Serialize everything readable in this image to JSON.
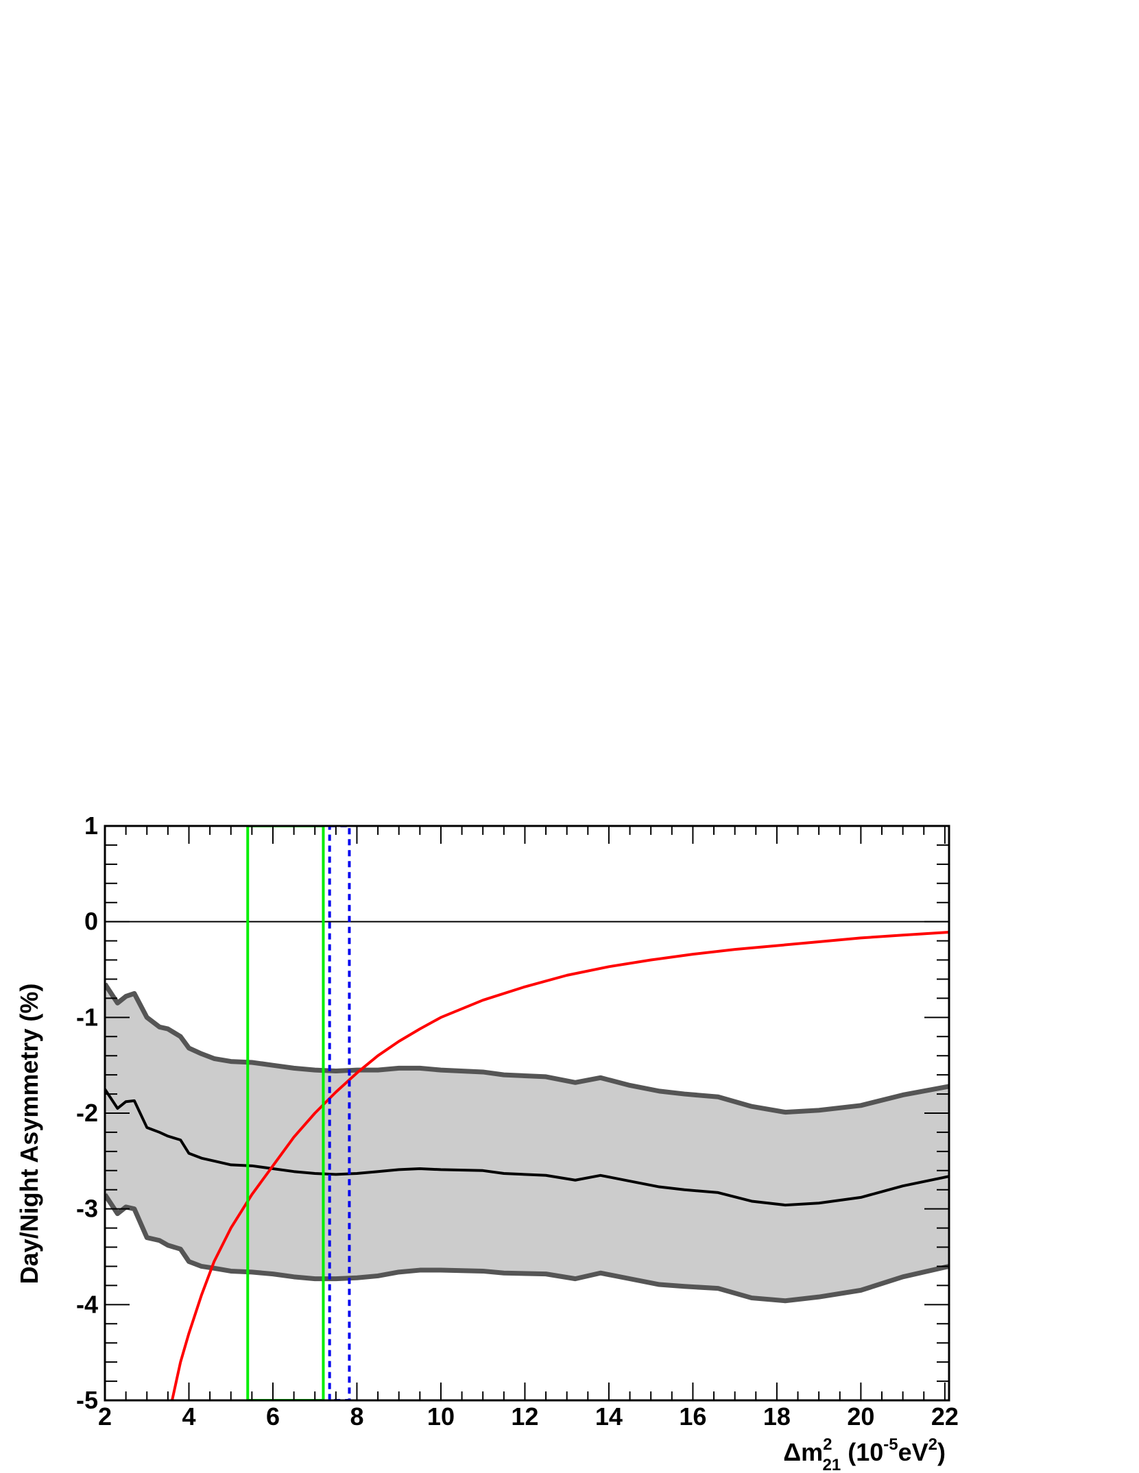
{
  "chart_data": {
    "type": "line",
    "xlabel": {
      "prefix": "Δm",
      "sup": "2",
      "sub": "21",
      "mid": " (10",
      "unit_sup": "-5",
      "unit": "eV",
      "unit_sup2": "2",
      "suffix": ")"
    },
    "ylabel": "Day/Night Asymmetry (%)",
    "xlim": [
      2,
      22.1
    ],
    "ylim": [
      -5,
      1
    ],
    "xticks": [
      2,
      4,
      6,
      8,
      10,
      12,
      14,
      16,
      18,
      20,
      22
    ],
    "yticks": [
      1,
      0,
      -1,
      -2,
      -3,
      -4,
      -5
    ],
    "grid": false,
    "band": {
      "color": "#cccccc",
      "edge_color": "#555555",
      "x": [
        2.0,
        2.3,
        2.5,
        2.7,
        3.0,
        3.3,
        3.5,
        3.8,
        4.0,
        4.3,
        4.6,
        5.0,
        5.5,
        6.0,
        6.5,
        7.0,
        7.5,
        8.0,
        8.5,
        9.0,
        9.5,
        10.0,
        11.0,
        11.5,
        12.5,
        13.2,
        13.8,
        14.5,
        15.2,
        15.8,
        16.6,
        17.4,
        18.2,
        19.0,
        20.0,
        21.0,
        22.1
      ],
      "upper": [
        -0.65,
        -0.85,
        -0.78,
        -0.75,
        -1.0,
        -1.1,
        -1.12,
        -1.2,
        -1.32,
        -1.38,
        -1.43,
        -1.46,
        -1.47,
        -1.5,
        -1.53,
        -1.55,
        -1.56,
        -1.55,
        -1.55,
        -1.53,
        -1.53,
        -1.55,
        -1.57,
        -1.6,
        -1.62,
        -1.68,
        -1.63,
        -1.71,
        -1.77,
        -1.8,
        -1.83,
        -1.93,
        -1.99,
        -1.97,
        -1.92,
        -1.81,
        -1.72
      ],
      "lower": [
        -2.85,
        -3.05,
        -2.98,
        -3.0,
        -3.3,
        -3.33,
        -3.38,
        -3.42,
        -3.55,
        -3.6,
        -3.62,
        -3.65,
        -3.66,
        -3.68,
        -3.71,
        -3.73,
        -3.73,
        -3.72,
        -3.7,
        -3.66,
        -3.64,
        -3.64,
        -3.65,
        -3.67,
        -3.68,
        -3.73,
        -3.67,
        -3.73,
        -3.79,
        -3.81,
        -3.83,
        -3.93,
        -3.96,
        -3.92,
        -3.85,
        -3.71,
        -3.6
      ]
    },
    "series": [
      {
        "color": "#000000",
        "x": [
          2.0,
          2.3,
          2.5,
          2.7,
          3.0,
          3.3,
          3.5,
          3.8,
          4.0,
          4.3,
          4.6,
          5.0,
          5.5,
          6.0,
          6.5,
          7.0,
          7.5,
          8.0,
          8.5,
          9.0,
          9.5,
          10.0,
          11.0,
          11.5,
          12.5,
          13.2,
          13.8,
          14.5,
          15.2,
          15.8,
          16.6,
          17.4,
          18.2,
          19.0,
          20.0,
          21.0,
          22.1
        ],
        "y": [
          -1.75,
          -1.95,
          -1.88,
          -1.87,
          -2.15,
          -2.2,
          -2.24,
          -2.28,
          -2.42,
          -2.47,
          -2.5,
          -2.54,
          -2.55,
          -2.58,
          -2.61,
          -2.63,
          -2.64,
          -2.63,
          -2.61,
          -2.59,
          -2.58,
          -2.59,
          -2.6,
          -2.63,
          -2.65,
          -2.7,
          -2.65,
          -2.71,
          -2.77,
          -2.8,
          -2.83,
          -2.92,
          -2.96,
          -2.94,
          -2.88,
          -2.76,
          -2.66
        ]
      },
      {
        "color": "#ff0000",
        "x": [
          3.6,
          3.8,
          4.0,
          4.3,
          4.6,
          5.0,
          5.5,
          6.0,
          6.5,
          7.0,
          7.5,
          8.0,
          8.5,
          9.0,
          9.5,
          10.0,
          11.0,
          12.0,
          13.0,
          14.0,
          15.0,
          16.0,
          17.0,
          18.0,
          19.0,
          20.0,
          21.0,
          22.1
        ],
        "y": [
          -5.0,
          -4.6,
          -4.3,
          -3.9,
          -3.55,
          -3.2,
          -2.85,
          -2.55,
          -2.25,
          -2.0,
          -1.78,
          -1.58,
          -1.4,
          -1.25,
          -1.12,
          -1.0,
          -0.82,
          -0.68,
          -0.56,
          -0.47,
          -0.4,
          -0.34,
          -0.29,
          -0.25,
          -0.21,
          -0.17,
          -0.14,
          -0.11
        ]
      },
      {
        "color": "#000000",
        "x": [
          2.0,
          22.1
        ],
        "y": [
          0,
          0
        ]
      }
    ],
    "regions": [
      {
        "color": "#00ee00",
        "style": "solid",
        "x0": 5.4,
        "x1": 7.2,
        "y0": -5,
        "y1": 1
      },
      {
        "color": "#0000ee",
        "style": "dashed",
        "x0": 7.35,
        "x1": 7.82,
        "y0": -5,
        "y1": 1
      }
    ]
  }
}
